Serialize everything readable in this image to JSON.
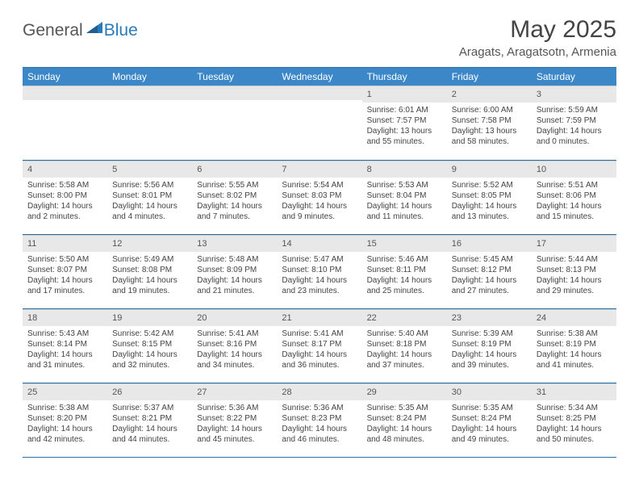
{
  "logo": {
    "text1": "General",
    "text2": "Blue"
  },
  "title": "May 2025",
  "location": "Aragats, Aragatsotn, Armenia",
  "colors": {
    "header_bg": "#3b87c8",
    "header_text": "#ffffff",
    "rule": "#2a6fa8",
    "daynum_bg": "#e8e8e8",
    "text": "#444444",
    "logo_blue": "#2a7ab9"
  },
  "weekdays": [
    "Sunday",
    "Monday",
    "Tuesday",
    "Wednesday",
    "Thursday",
    "Friday",
    "Saturday"
  ],
  "weeks": [
    [
      null,
      null,
      null,
      null,
      {
        "n": "1",
        "sr": "6:01 AM",
        "ss": "7:57 PM",
        "dl": "13 hours and 55 minutes."
      },
      {
        "n": "2",
        "sr": "6:00 AM",
        "ss": "7:58 PM",
        "dl": "13 hours and 58 minutes."
      },
      {
        "n": "3",
        "sr": "5:59 AM",
        "ss": "7:59 PM",
        "dl": "14 hours and 0 minutes."
      }
    ],
    [
      {
        "n": "4",
        "sr": "5:58 AM",
        "ss": "8:00 PM",
        "dl": "14 hours and 2 minutes."
      },
      {
        "n": "5",
        "sr": "5:56 AM",
        "ss": "8:01 PM",
        "dl": "14 hours and 4 minutes."
      },
      {
        "n": "6",
        "sr": "5:55 AM",
        "ss": "8:02 PM",
        "dl": "14 hours and 7 minutes."
      },
      {
        "n": "7",
        "sr": "5:54 AM",
        "ss": "8:03 PM",
        "dl": "14 hours and 9 minutes."
      },
      {
        "n": "8",
        "sr": "5:53 AM",
        "ss": "8:04 PM",
        "dl": "14 hours and 11 minutes."
      },
      {
        "n": "9",
        "sr": "5:52 AM",
        "ss": "8:05 PM",
        "dl": "14 hours and 13 minutes."
      },
      {
        "n": "10",
        "sr": "5:51 AM",
        "ss": "8:06 PM",
        "dl": "14 hours and 15 minutes."
      }
    ],
    [
      {
        "n": "11",
        "sr": "5:50 AM",
        "ss": "8:07 PM",
        "dl": "14 hours and 17 minutes."
      },
      {
        "n": "12",
        "sr": "5:49 AM",
        "ss": "8:08 PM",
        "dl": "14 hours and 19 minutes."
      },
      {
        "n": "13",
        "sr": "5:48 AM",
        "ss": "8:09 PM",
        "dl": "14 hours and 21 minutes."
      },
      {
        "n": "14",
        "sr": "5:47 AM",
        "ss": "8:10 PM",
        "dl": "14 hours and 23 minutes."
      },
      {
        "n": "15",
        "sr": "5:46 AM",
        "ss": "8:11 PM",
        "dl": "14 hours and 25 minutes."
      },
      {
        "n": "16",
        "sr": "5:45 AM",
        "ss": "8:12 PM",
        "dl": "14 hours and 27 minutes."
      },
      {
        "n": "17",
        "sr": "5:44 AM",
        "ss": "8:13 PM",
        "dl": "14 hours and 29 minutes."
      }
    ],
    [
      {
        "n": "18",
        "sr": "5:43 AM",
        "ss": "8:14 PM",
        "dl": "14 hours and 31 minutes."
      },
      {
        "n": "19",
        "sr": "5:42 AM",
        "ss": "8:15 PM",
        "dl": "14 hours and 32 minutes."
      },
      {
        "n": "20",
        "sr": "5:41 AM",
        "ss": "8:16 PM",
        "dl": "14 hours and 34 minutes."
      },
      {
        "n": "21",
        "sr": "5:41 AM",
        "ss": "8:17 PM",
        "dl": "14 hours and 36 minutes."
      },
      {
        "n": "22",
        "sr": "5:40 AM",
        "ss": "8:18 PM",
        "dl": "14 hours and 37 minutes."
      },
      {
        "n": "23",
        "sr": "5:39 AM",
        "ss": "8:19 PM",
        "dl": "14 hours and 39 minutes."
      },
      {
        "n": "24",
        "sr": "5:38 AM",
        "ss": "8:19 PM",
        "dl": "14 hours and 41 minutes."
      }
    ],
    [
      {
        "n": "25",
        "sr": "5:38 AM",
        "ss": "8:20 PM",
        "dl": "14 hours and 42 minutes."
      },
      {
        "n": "26",
        "sr": "5:37 AM",
        "ss": "8:21 PM",
        "dl": "14 hours and 44 minutes."
      },
      {
        "n": "27",
        "sr": "5:36 AM",
        "ss": "8:22 PM",
        "dl": "14 hours and 45 minutes."
      },
      {
        "n": "28",
        "sr": "5:36 AM",
        "ss": "8:23 PM",
        "dl": "14 hours and 46 minutes."
      },
      {
        "n": "29",
        "sr": "5:35 AM",
        "ss": "8:24 PM",
        "dl": "14 hours and 48 minutes."
      },
      {
        "n": "30",
        "sr": "5:35 AM",
        "ss": "8:24 PM",
        "dl": "14 hours and 49 minutes."
      },
      {
        "n": "31",
        "sr": "5:34 AM",
        "ss": "8:25 PM",
        "dl": "14 hours and 50 minutes."
      }
    ]
  ]
}
